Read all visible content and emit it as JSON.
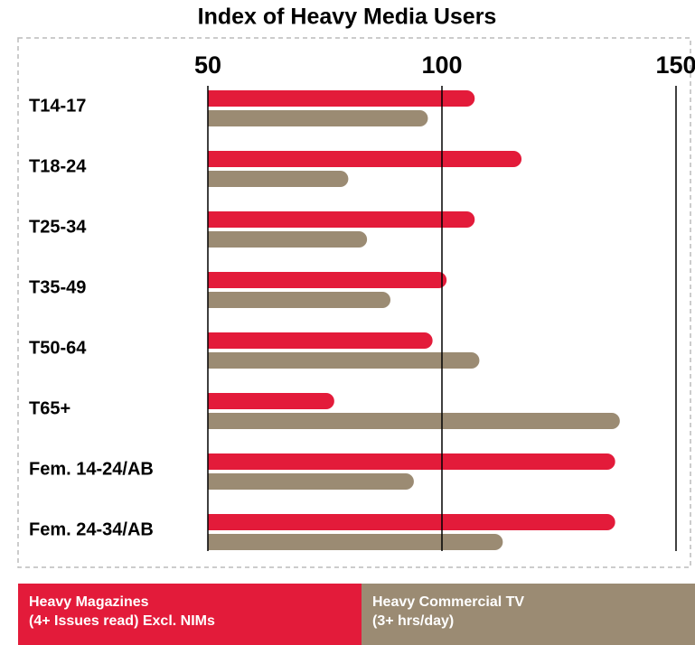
{
  "chart_data": {
    "type": "barh",
    "title": "Index of Heavy Media Users",
    "categories": [
      "T14-17",
      "T18-24",
      "T25-34",
      "T35-49",
      "T50-64",
      "T65+",
      "Fem. 14-24/AB",
      "Fem. 24-34/AB"
    ],
    "series": [
      {
        "name": "Heavy Magazines\n(4+ Issues read) Excl. NIMs",
        "color": "#e31b3a",
        "values": [
          107,
          117,
          107,
          101,
          98,
          77,
          137,
          137
        ]
      },
      {
        "name": "Heavy Commercial TV\n(3+ hrs/day)",
        "color": "#9b8b73",
        "values": [
          97,
          80,
          84,
          89,
          108,
          138,
          94,
          113
        ]
      }
    ],
    "xlim": [
      50,
      150
    ],
    "xticks": [
      50,
      100,
      150
    ],
    "grid": true
  }
}
